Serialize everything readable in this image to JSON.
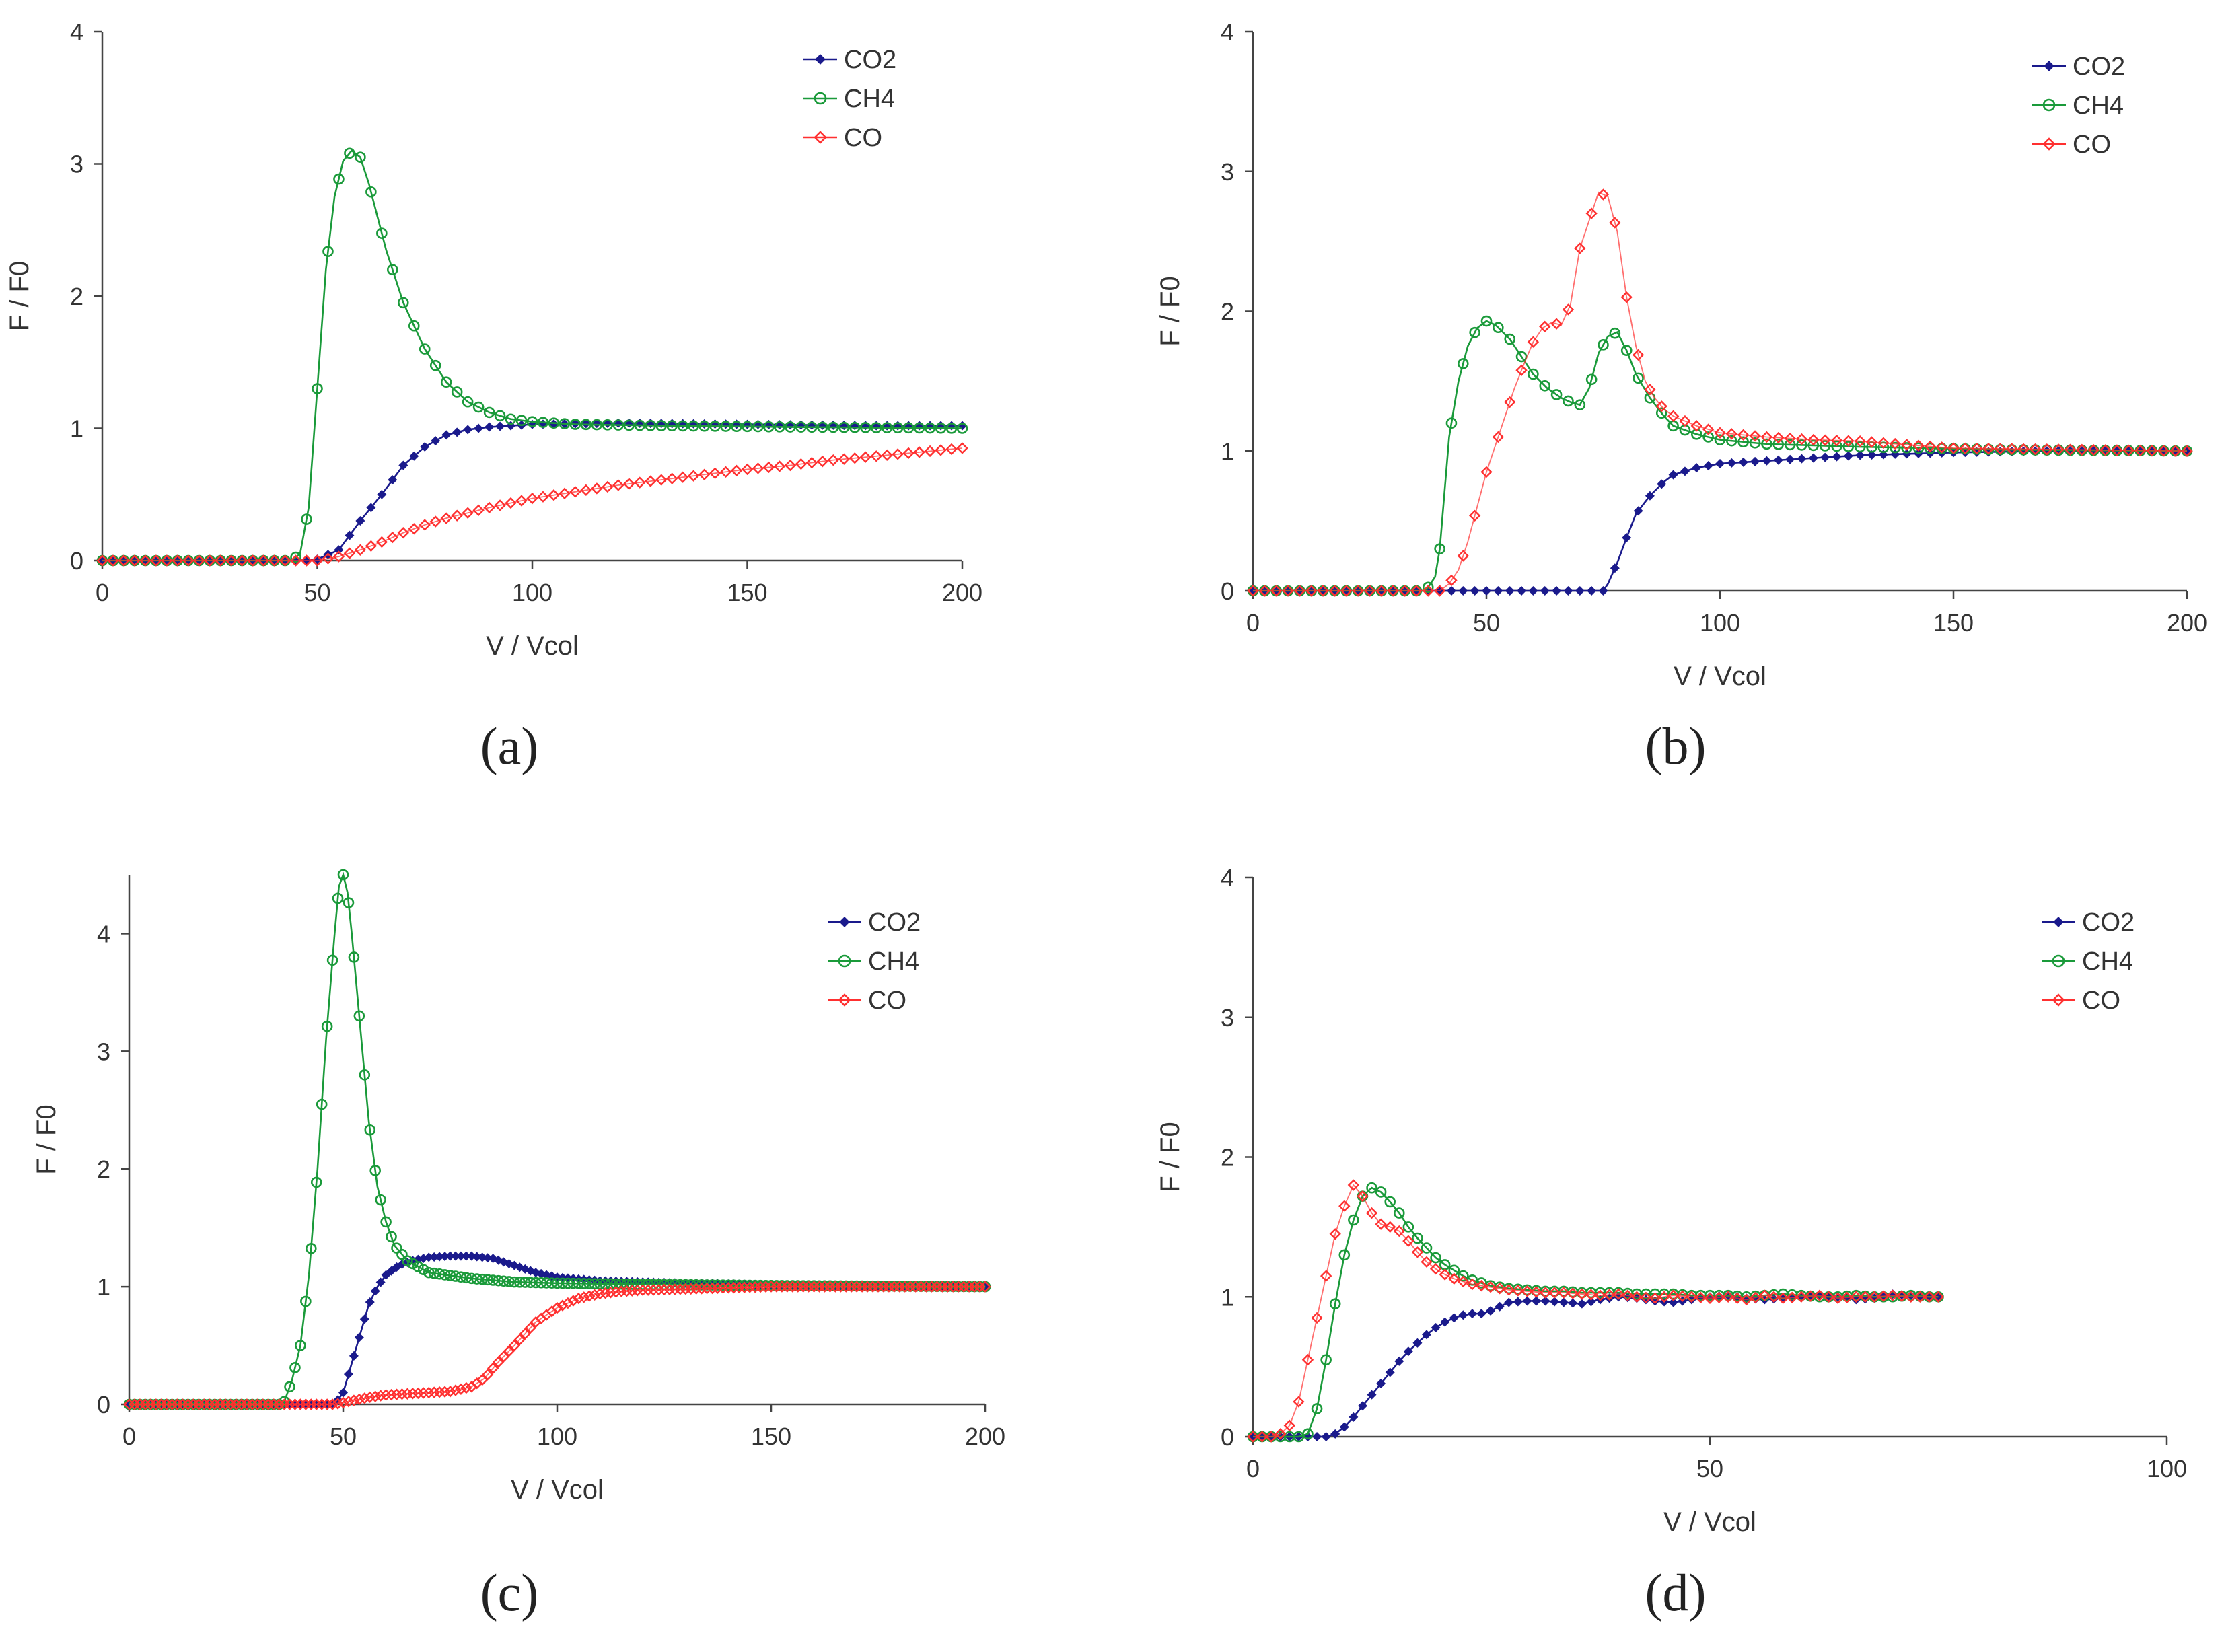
{
  "figure": {
    "colors": {
      "CO2": "#1a1a8c",
      "CH4": "#1a9a3a",
      "CO": "#ff3030",
      "axis": "#444444",
      "text": "#333333"
    }
  },
  "chart_data": [
    {
      "id": "a",
      "type": "line",
      "caption": "(a)",
      "xlabel": "V / Vcol",
      "ylabel": "F / F0",
      "xlim": [
        0,
        200
      ],
      "ylim": [
        0,
        4
      ],
      "xticks": [
        0,
        50,
        100,
        150,
        200
      ],
      "yticks": [
        0,
        1,
        2,
        3,
        4
      ],
      "grid": false,
      "legend": "top-right",
      "series": [
        {
          "name": "CO2",
          "marker": "diamond",
          "x": [
            0,
            45,
            50,
            55,
            60,
            65,
            70,
            75,
            80,
            85,
            90,
            95,
            100,
            120,
            150,
            180,
            200
          ],
          "values": [
            0,
            0,
            0.01,
            0.08,
            0.3,
            0.5,
            0.72,
            0.86,
            0.95,
            0.99,
            1.01,
            1.02,
            1.03,
            1.04,
            1.03,
            1.02,
            1.02
          ]
        },
        {
          "name": "CH4",
          "marker": "circle",
          "x": [
            0,
            44,
            46,
            48,
            50,
            52,
            54,
            56,
            58,
            60,
            62,
            64,
            66,
            68,
            70,
            75,
            80,
            85,
            90,
            95,
            100,
            110,
            130,
            160,
            200
          ],
          "values": [
            0,
            0,
            0.05,
            0.4,
            1.3,
            2.2,
            2.75,
            3.02,
            3.1,
            3.05,
            2.85,
            2.6,
            2.35,
            2.15,
            1.95,
            1.6,
            1.35,
            1.2,
            1.12,
            1.07,
            1.05,
            1.03,
            1.02,
            1.01,
            1.0
          ]
        },
        {
          "name": "CO",
          "marker": "diamond-open",
          "x": [
            0,
            50,
            55,
            60,
            65,
            70,
            75,
            80,
            90,
            100,
            110,
            120,
            130,
            140,
            150,
            160,
            170,
            180,
            190,
            200
          ],
          "values": [
            0,
            0,
            0.03,
            0.08,
            0.14,
            0.21,
            0.27,
            0.32,
            0.4,
            0.47,
            0.52,
            0.57,
            0.61,
            0.65,
            0.69,
            0.72,
            0.76,
            0.79,
            0.82,
            0.85
          ]
        }
      ]
    },
    {
      "id": "b",
      "type": "line",
      "caption": "(b)",
      "xlabel": "V / Vcol",
      "ylabel": "F / F0",
      "xlim": [
        0,
        200
      ],
      "ylim": [
        0,
        4
      ],
      "xticks": [
        0,
        50,
        100,
        150,
        200
      ],
      "yticks": [
        0,
        1,
        2,
        3,
        4
      ],
      "grid": false,
      "legend": "top-right",
      "series": [
        {
          "name": "CO2",
          "marker": "diamond",
          "x": [
            0,
            70,
            75,
            76,
            78,
            80,
            82,
            85,
            88,
            90,
            95,
            100,
            110,
            120,
            130,
            150,
            170,
            200
          ],
          "values": [
            0,
            0,
            0,
            0.05,
            0.2,
            0.38,
            0.55,
            0.68,
            0.78,
            0.83,
            0.88,
            0.91,
            0.93,
            0.95,
            0.97,
            0.99,
            1.0,
            1.0
          ]
        },
        {
          "name": "CH4",
          "marker": "circle",
          "x": [
            0,
            37,
            39,
            40,
            41,
            42,
            44,
            46,
            48,
            50,
            52,
            55,
            58,
            60,
            63,
            66,
            68,
            70,
            72,
            74,
            76,
            78,
            80,
            82,
            85,
            88,
            90,
            95,
            100,
            110,
            130,
            160,
            200
          ],
          "values": [
            0,
            0,
            0.1,
            0.3,
            0.7,
            1.1,
            1.5,
            1.75,
            1.88,
            1.93,
            1.9,
            1.8,
            1.65,
            1.55,
            1.45,
            1.38,
            1.35,
            1.33,
            1.45,
            1.7,
            1.82,
            1.85,
            1.72,
            1.55,
            1.38,
            1.25,
            1.18,
            1.12,
            1.08,
            1.05,
            1.03,
            1.01,
            1.0
          ]
        },
        {
          "name": "CO",
          "marker": "diamond-open",
          "x": [
            0,
            40,
            42,
            44,
            46,
            48,
            50,
            52,
            54,
            56,
            58,
            60,
            62,
            64,
            66,
            68,
            70,
            72,
            74,
            76,
            78,
            80,
            82,
            84,
            86,
            88,
            90,
            95,
            100,
            110,
            120,
            130,
            150,
            200
          ],
          "values": [
            0,
            0,
            0.05,
            0.15,
            0.35,
            0.6,
            0.85,
            1.05,
            1.25,
            1.45,
            1.62,
            1.78,
            1.88,
            1.92,
            1.9,
            2.05,
            2.45,
            2.65,
            2.85,
            2.82,
            2.57,
            2.1,
            1.75,
            1.5,
            1.38,
            1.3,
            1.25,
            1.18,
            1.13,
            1.1,
            1.08,
            1.07,
            1.02,
            1.0
          ]
        }
      ]
    },
    {
      "id": "c",
      "type": "line",
      "caption": "(c)",
      "xlabel": "V / Vcol",
      "ylabel": "F / F0",
      "xlim": [
        0,
        200
      ],
      "ylim": [
        0,
        4.5
      ],
      "xticks": [
        0,
        50,
        100,
        150,
        200
      ],
      "yticks": [
        0,
        1,
        2,
        3,
        4
      ],
      "grid": false,
      "legend": "top-right",
      "series": [
        {
          "name": "CO2",
          "marker": "diamond",
          "x": [
            0,
            48,
            50,
            52,
            54,
            56,
            58,
            60,
            63,
            66,
            70,
            75,
            80,
            85,
            90,
            95,
            100,
            110,
            130,
            160,
            200
          ],
          "values": [
            0,
            0,
            0.1,
            0.35,
            0.6,
            0.85,
            1.0,
            1.1,
            1.18,
            1.22,
            1.25,
            1.26,
            1.26,
            1.24,
            1.18,
            1.12,
            1.08,
            1.05,
            1.03,
            1.01,
            1.0
          ]
        },
        {
          "name": "CH4",
          "marker": "circle",
          "x": [
            0,
            36,
            38,
            40,
            42,
            44,
            46,
            48,
            49,
            50,
            51,
            52,
            54,
            56,
            58,
            60,
            62,
            65,
            70,
            80,
            90,
            100,
            120,
            150,
            200
          ],
          "values": [
            0,
            0,
            0.2,
            0.5,
            1.1,
            2.0,
            3.1,
            4.0,
            4.4,
            4.5,
            4.35,
            4.0,
            3.2,
            2.4,
            1.85,
            1.55,
            1.35,
            1.22,
            1.12,
            1.07,
            1.04,
            1.03,
            1.02,
            1.01,
            1.0
          ]
        },
        {
          "name": "CO",
          "marker": "diamond-open",
          "x": [
            0,
            48,
            52,
            56,
            60,
            65,
            70,
            75,
            80,
            83,
            86,
            90,
            95,
            100,
            105,
            110,
            115,
            120,
            130,
            140,
            150,
            200
          ],
          "values": [
            0,
            0,
            0.03,
            0.06,
            0.08,
            0.09,
            0.1,
            0.11,
            0.15,
            0.22,
            0.35,
            0.5,
            0.7,
            0.82,
            0.9,
            0.94,
            0.96,
            0.97,
            0.98,
            0.99,
            1.0,
            1.0
          ]
        }
      ]
    },
    {
      "id": "d",
      "type": "line",
      "caption": "(d)",
      "xlabel": "V / Vcol",
      "ylabel": "F / F0",
      "xlim": [
        0,
        100
      ],
      "ylim": [
        0,
        4
      ],
      "xticks": [
        0,
        50,
        100
      ],
      "yticks": [
        0,
        1,
        2,
        3,
        4
      ],
      "grid": false,
      "legend": "top-right",
      "series": [
        {
          "name": "CO2",
          "marker": "diamond",
          "x": [
            0,
            1,
            2,
            3,
            4,
            5,
            6,
            7,
            8,
            9,
            10,
            11,
            12,
            13,
            14,
            15,
            16,
            17,
            18,
            19,
            20,
            21,
            22,
            23,
            24,
            25,
            26,
            27,
            28,
            30,
            32,
            34,
            36,
            38,
            40,
            42,
            44,
            46,
            48,
            50,
            52,
            54,
            56,
            58,
            60,
            62,
            64,
            66,
            68,
            70,
            72,
            74,
            75
          ],
          "values": [
            0,
            0,
            0,
            0,
            0,
            0,
            0,
            0,
            0,
            0.02,
            0.07,
            0.14,
            0.22,
            0.3,
            0.38,
            0.46,
            0.54,
            0.61,
            0.67,
            0.73,
            0.78,
            0.82,
            0.85,
            0.87,
            0.88,
            0.88,
            0.9,
            0.93,
            0.96,
            0.97,
            0.97,
            0.96,
            0.95,
            0.98,
            1.0,
            0.99,
            0.97,
            0.96,
            0.98,
            1.0,
            1.01,
            0.99,
            0.98,
            0.99,
            1.0,
            1.01,
            1.0,
            0.98,
            0.99,
            1.02,
            1.01,
            1.0,
            1.0
          ]
        },
        {
          "name": "CH4",
          "marker": "circle",
          "x": [
            0,
            2,
            4,
            5,
            6,
            7,
            8,
            9,
            10,
            11,
            12,
            13,
            14,
            15,
            16,
            17,
            18,
            19,
            20,
            21,
            22,
            23,
            24,
            25,
            26,
            27,
            28,
            30,
            32,
            34,
            36,
            38,
            40,
            42,
            44,
            46,
            48,
            50,
            52,
            54,
            56,
            58,
            60,
            62,
            64,
            66,
            68,
            70,
            72,
            74,
            75
          ],
          "values": [
            0,
            0,
            0,
            0,
            0.02,
            0.2,
            0.55,
            0.95,
            1.3,
            1.55,
            1.72,
            1.78,
            1.75,
            1.68,
            1.6,
            1.5,
            1.42,
            1.35,
            1.28,
            1.23,
            1.19,
            1.15,
            1.12,
            1.1,
            1.08,
            1.07,
            1.06,
            1.05,
            1.04,
            1.04,
            1.03,
            1.03,
            1.03,
            1.02,
            1.02,
            1.02,
            1.01,
            1.01,
            1.01,
            1.0,
            1.01,
            1.02,
            1.01,
            1.0,
            1.0,
            1.01,
            1.0,
            1.0,
            1.01,
            1.0,
            1.0
          ]
        },
        {
          "name": "CO",
          "marker": "diamond-open",
          "x": [
            0,
            2,
            3,
            4,
            5,
            6,
            7,
            8,
            9,
            10,
            11,
            12,
            13,
            14,
            15,
            16,
            17,
            18,
            19,
            20,
            21,
            22,
            23,
            24,
            25,
            26,
            27,
            28,
            30,
            32,
            34,
            36,
            38,
            40,
            42,
            44,
            46,
            48,
            50,
            52,
            54,
            56,
            58,
            60,
            62,
            64,
            66,
            68,
            70,
            72,
            74,
            75
          ],
          "values": [
            0,
            0,
            0.02,
            0.08,
            0.25,
            0.55,
            0.85,
            1.15,
            1.45,
            1.65,
            1.8,
            1.72,
            1.6,
            1.52,
            1.5,
            1.47,
            1.4,
            1.32,
            1.25,
            1.2,
            1.16,
            1.13,
            1.11,
            1.09,
            1.08,
            1.07,
            1.06,
            1.05,
            1.04,
            1.03,
            1.03,
            1.02,
            1.01,
            1.02,
            1.0,
            0.99,
            1.01,
            1.0,
            0.99,
            1.0,
            0.98,
            1.01,
            0.99,
            1.0,
            1.01,
            0.99,
            1.0,
            1.0,
            1.01,
            1.0,
            1.0,
            1.0
          ]
        }
      ]
    }
  ]
}
